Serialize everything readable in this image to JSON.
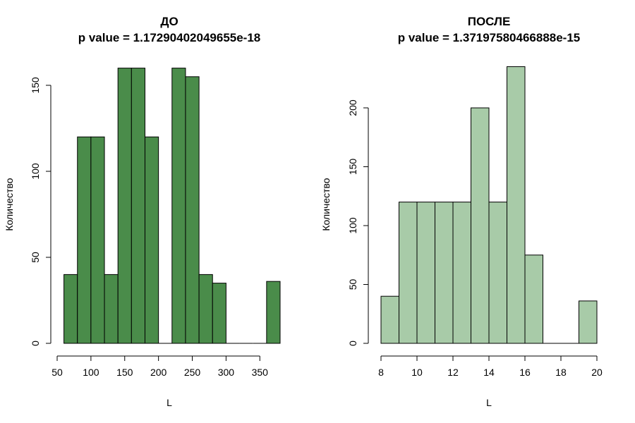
{
  "chart_data": [
    {
      "type": "histogram",
      "title": "ДО",
      "subtitle": "p value = 1.17290402049655e-18",
      "xlabel": "L",
      "ylabel": "Количество",
      "bin_width": 20,
      "bins": [
        {
          "x0": 60,
          "x1": 80,
          "count": 40
        },
        {
          "x0": 80,
          "x1": 100,
          "count": 120
        },
        {
          "x0": 100,
          "x1": 120,
          "count": 120
        },
        {
          "x0": 120,
          "x1": 140,
          "count": 40
        },
        {
          "x0": 140,
          "x1": 160,
          "count": 160
        },
        {
          "x0": 160,
          "x1": 180,
          "count": 160
        },
        {
          "x0": 180,
          "x1": 200,
          "count": 120
        },
        {
          "x0": 200,
          "x1": 220,
          "count": 0
        },
        {
          "x0": 220,
          "x1": 240,
          "count": 160
        },
        {
          "x0": 240,
          "x1": 260,
          "count": 155
        },
        {
          "x0": 260,
          "x1": 280,
          "count": 40
        },
        {
          "x0": 280,
          "x1": 300,
          "count": 35
        },
        {
          "x0": 300,
          "x1": 320,
          "count": 0
        },
        {
          "x0": 320,
          "x1": 340,
          "count": 0
        },
        {
          "x0": 340,
          "x1": 360,
          "count": 0
        },
        {
          "x0": 360,
          "x1": 380,
          "count": 36
        }
      ],
      "xlim": [
        50,
        380
      ],
      "ylim": [
        0,
        165
      ],
      "xticks": [
        50,
        100,
        150,
        200,
        250,
        300,
        350
      ],
      "xtick_labels": [
        "50",
        "100",
        "150",
        "200",
        "250",
        "300",
        "350"
      ],
      "yticks": [
        0,
        50,
        100,
        150
      ],
      "ytick_labels": [
        "0",
        "50",
        "100",
        "150"
      ],
      "fill_color": "#4a8c4a",
      "edge_color": "#000000",
      "grid": false,
      "legend": "none"
    },
    {
      "type": "histogram",
      "title": "ПОСЛЕ",
      "subtitle": "p value = 1.37197580466888e-15",
      "xlabel": "L",
      "ylabel": "Количество",
      "bin_width": 1,
      "bins": [
        {
          "x0": 8,
          "x1": 9,
          "count": 40
        },
        {
          "x0": 9,
          "x1": 10,
          "count": 120
        },
        {
          "x0": 10,
          "x1": 11,
          "count": 120
        },
        {
          "x0": 11,
          "x1": 12,
          "count": 120
        },
        {
          "x0": 12,
          "x1": 13,
          "count": 120
        },
        {
          "x0": 13,
          "x1": 14,
          "count": 200
        },
        {
          "x0": 14,
          "x1": 15,
          "count": 120
        },
        {
          "x0": 15,
          "x1": 16,
          "count": 235
        },
        {
          "x0": 16,
          "x1": 17,
          "count": 75
        },
        {
          "x0": 17,
          "x1": 18,
          "count": 0
        },
        {
          "x0": 18,
          "x1": 19,
          "count": 0
        },
        {
          "x0": 19,
          "x1": 20,
          "count": 36
        }
      ],
      "xlim": [
        8,
        20
      ],
      "ylim": [
        0,
        240
      ],
      "xticks": [
        8,
        10,
        12,
        14,
        16,
        18,
        20
      ],
      "xtick_labels": [
        "8",
        "10",
        "12",
        "14",
        "16",
        "18",
        "20"
      ],
      "yticks": [
        0,
        50,
        100,
        150,
        200
      ],
      "ytick_labels": [
        "0",
        "50",
        "100",
        "150",
        "200"
      ],
      "fill_color": "#a8cba8",
      "edge_color": "#000000",
      "grid": false,
      "legend": "none"
    }
  ]
}
